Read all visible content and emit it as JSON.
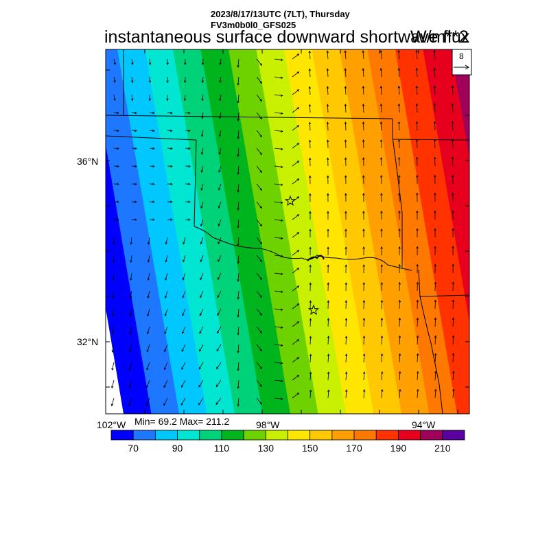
{
  "header": {
    "datetime": "2023/8/17/13UTC (7LT), Thursday",
    "model": "FV3m0b0l0_GFS025",
    "title": "instantaneous surface downward shortwave flux",
    "units": "W/m**2"
  },
  "map": {
    "lat_labels": [
      "36°N",
      "32°N"
    ],
    "lon_labels": [
      "102°W",
      "98°W",
      "94°W"
    ],
    "domain_lon": [
      -102,
      -93.8
    ],
    "domain_lat": [
      30.5,
      38.2
    ],
    "gradient_direction": "increasing west to east",
    "markers": [
      "star",
      "star"
    ],
    "vector_reference": {
      "value": "8",
      "icon": "arrow-right-icon"
    }
  },
  "stats": {
    "text": "Min= 69.2 Max= 211.2",
    "min": 69.2,
    "max": 211.2
  },
  "colorbar": {
    "colors": [
      "#0000ff",
      "#1e78ff",
      "#00c8ff",
      "#00e6d2",
      "#00d27a",
      "#00b41e",
      "#6ed200",
      "#c8f000",
      "#ffe600",
      "#ffc800",
      "#ffa000",
      "#ff7800",
      "#ff3200",
      "#e6001e",
      "#a0005a",
      "#5a00a0"
    ],
    "labels": [
      "70",
      "90",
      "110",
      "130",
      "150",
      "170",
      "190",
      "210"
    ]
  }
}
